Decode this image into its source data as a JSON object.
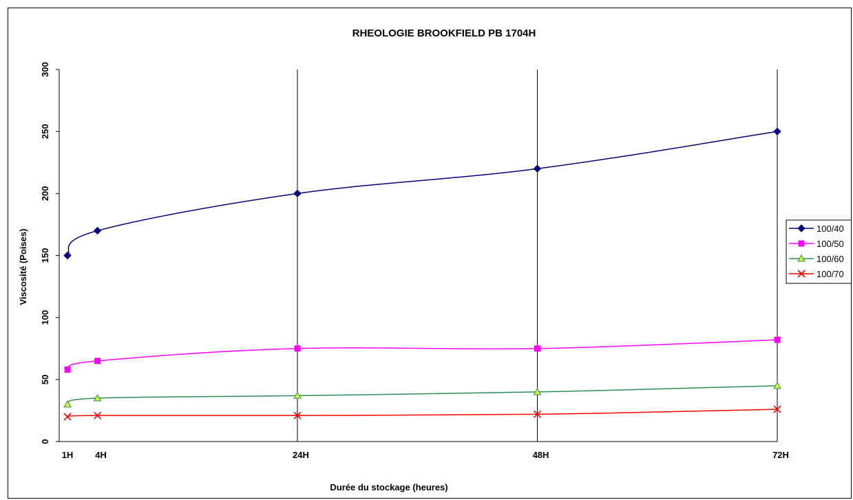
{
  "chart_data": {
    "type": "line",
    "title": "RHEOLOGIE BROOKFIELD PB 1704H",
    "xlabel": "Durée du stockage (heures)",
    "ylabel": "Viscosité (Poises)",
    "ylim": [
      0,
      300
    ],
    "yticks": [
      "0",
      "50",
      "100",
      "150",
      "200",
      "250",
      "300"
    ],
    "xticks": [
      {
        "x": 1,
        "label": "1H"
      },
      {
        "x": 4,
        "label": "4H"
      },
      {
        "x": 24,
        "label": "24H"
      },
      {
        "x": 48,
        "label": "48H"
      },
      {
        "x": 72,
        "label": "72H"
      }
    ],
    "vertical_gridlines_at": [
      24,
      48
    ],
    "legend_position": "right",
    "x": [
      1,
      4,
      24,
      48,
      72
    ],
    "series": [
      {
        "name": "100/40",
        "color": "#000080",
        "marker": "diamond",
        "values": [
          150,
          170,
          200,
          220,
          250
        ]
      },
      {
        "name": "100/50",
        "color": "#ff00ff",
        "marker": "square",
        "values": [
          58,
          65,
          75,
          75,
          82
        ]
      },
      {
        "name": "100/60",
        "color": "#2e8b57",
        "marker": "triangle",
        "marker_fill": "#ccff33",
        "values": [
          30,
          35,
          37,
          40,
          45
        ]
      },
      {
        "name": "100/70",
        "color": "#ff0000",
        "marker": "x",
        "values": [
          20,
          21,
          21,
          22,
          26
        ]
      }
    ]
  }
}
